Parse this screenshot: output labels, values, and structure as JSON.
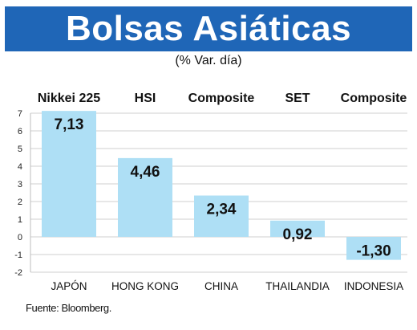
{
  "title": "Bolsas Asiáticas",
  "subtitle": "(% Var. día)",
  "source": "Fuente: Bloomberg.",
  "colors": {
    "banner": "#1f66b7",
    "bar": "#aedff5",
    "grid": "#cfcfcf"
  },
  "chart_data": {
    "type": "bar",
    "categories": [
      "JAPÓN",
      "HONG KONG",
      "CHINA",
      "THAILANDIA",
      "INDONESIA"
    ],
    "indices": [
      "Nikkei 225",
      "HSI",
      "Composite",
      "SET",
      "Composite"
    ],
    "values": [
      7.13,
      4.46,
      2.34,
      0.92,
      -1.3
    ],
    "value_labels": [
      "7,13",
      "4,46",
      "2,34",
      "0,92",
      "-1,30"
    ],
    "ylim": [
      -2,
      7
    ],
    "yticks": [
      7,
      6,
      5,
      4,
      3,
      2,
      1,
      0,
      -1,
      -2
    ],
    "grid": true,
    "xlabel": "",
    "ylabel": ""
  }
}
